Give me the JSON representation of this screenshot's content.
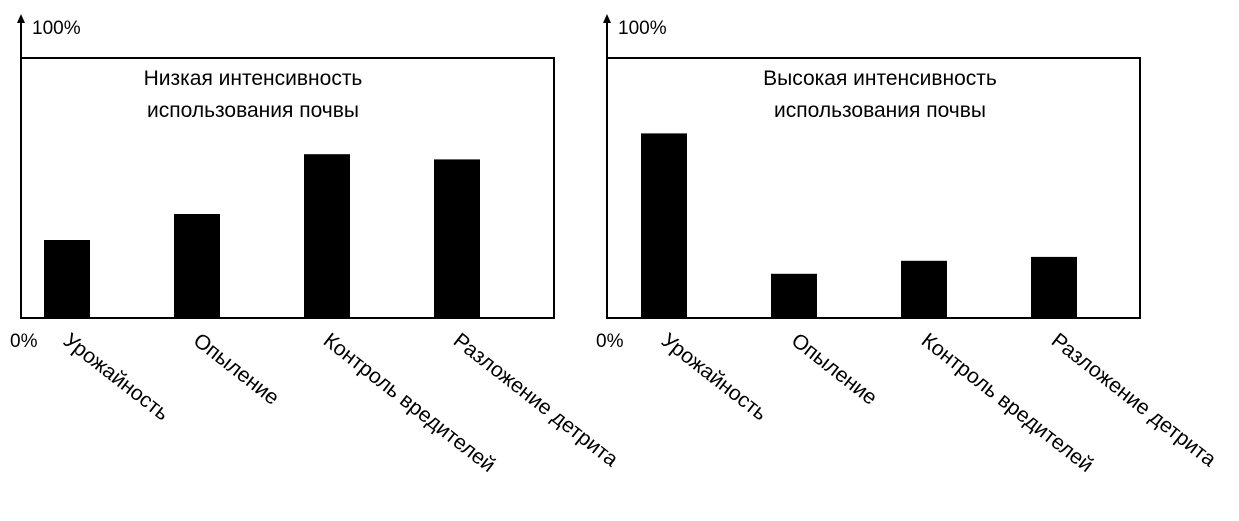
{
  "chart_data": [
    {
      "type": "bar",
      "title": "Низкая интенсивность использования почвы",
      "title_lines": [
        "Низкая интенсивность",
        "использования почвы"
      ],
      "categories": [
        "Урожайность",
        "Опыление",
        "Контроль вредителей",
        "Разложение детрита"
      ],
      "values": [
        30,
        40,
        63,
        61
      ],
      "ylim": [
        0,
        100
      ],
      "y_top_label": "100%",
      "y_bottom_label": "0%",
      "xlabel": "",
      "ylabel": "",
      "grid": false,
      "bar_color": "#000000"
    },
    {
      "type": "bar",
      "title": "Высокая интенсивность использования почвы",
      "title_lines": [
        "Высокая интенсивность",
        "использования почвы"
      ],
      "categories": [
        "Урожайность",
        "Опыление",
        "Контроль вредителей",
        "Разложение детрита"
      ],
      "values": [
        71,
        17,
        22,
        23.5
      ],
      "ylim": [
        0,
        100
      ],
      "y_top_label": "100%",
      "y_bottom_label": "0%",
      "xlabel": "",
      "ylabel": "",
      "grid": false,
      "bar_color": "#000000"
    }
  ]
}
